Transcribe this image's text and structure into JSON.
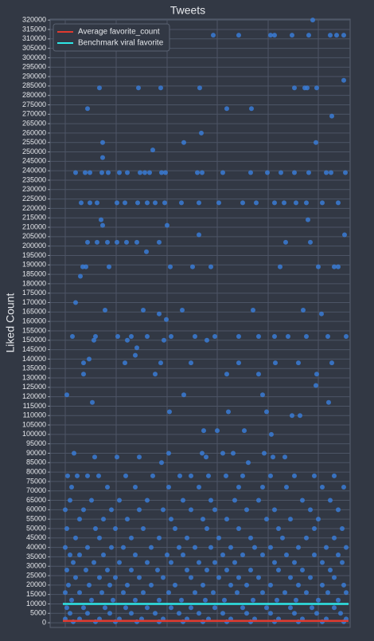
{
  "chart_data": {
    "type": "scatter",
    "title": "Tweets",
    "ylabel": "Liked Count",
    "grid": true,
    "legend": "upper left",
    "xlim": [
      63,
      440
    ],
    "xticks": [
      82,
      146,
      210,
      273,
      337,
      400
    ],
    "ylim": [
      -2500,
      320500
    ],
    "yticks": [
      0,
      5000,
      10000,
      15000,
      20000,
      25000,
      30000,
      35000,
      40000,
      45000,
      50000,
      55000,
      60000,
      65000,
      70000,
      75000,
      80000,
      85000,
      90000,
      95000,
      100000,
      105000,
      110000,
      115000,
      120000,
      125000,
      130000,
      135000,
      140000,
      145000,
      150000,
      155000,
      160000,
      165000,
      170000,
      175000,
      180000,
      185000,
      190000,
      195000,
      200000,
      205000,
      210000,
      215000,
      220000,
      225000,
      230000,
      235000,
      240000,
      245000,
      250000,
      255000,
      260000,
      265000,
      270000,
      275000,
      280000,
      285000,
      290000,
      295000,
      300000,
      305000,
      310000,
      315000,
      320000
    ],
    "lines": [
      {
        "name": "Average favorite_count",
        "color": "#e03a2f",
        "value": 1000
      },
      {
        "name": "Benchmark viral favorite",
        "color": "#2ee6e6",
        "value": 10000
      }
    ],
    "series": [
      {
        "color": "#3a7bd5",
        "x": [
          393,
          268,
          300,
          340,
          345,
          367,
          388,
          415,
          423,
          432,
          432,
          125,
          174,
          202,
          251,
          370,
          383,
          386,
          398,
          110,
          285,
          316,
          417,
          253,
          129,
          231,
          397,
          192,
          129,
          95,
          107,
          113,
          128,
          136,
          150,
          160,
          176,
          182,
          188,
          203,
          208,
          248,
          254,
          280,
          315,
          336,
          353,
          370,
          388,
          410,
          416,
          434,
          102,
          113,
          122,
          147,
          157,
          173,
          185,
          195,
          207,
          228,
          250,
          275,
          305,
          322,
          345,
          357,
          372,
          385,
          405,
          425,
          127,
          387,
          129,
          210,
          250,
          433,
          110,
          122,
          135,
          147,
          159,
          172,
          200,
          359,
          390,
          184,
          104,
          108,
          137,
          214,
          242,
          265,
          352,
          400,
          420,
          425,
          101,
          95,
          132,
          180,
          229,
          318,
          381,
          200,
          404,
          209,
          91,
          120,
          148,
          165,
          185,
          215,
          245,
          270,
          300,
          325,
          345,
          362,
          385,
          412,
          435,
          118,
          160,
          206,
          260,
          172,
          170,
          105,
          157,
          202,
          240,
          300,
          346,
          375,
          417,
          112,
          105,
          195,
          285,
          325,
          398,
          397,
          84,
          231,
          330,
          116,
          413,
          213,
          287,
          335,
          367,
          377,
          256,
          273,
          307,
          341,
          93,
          212,
          254,
          280,
          293,
          332,
          119,
          147,
          175,
          259,
          343,
          358,
          203,
          312,
          85,
          97,
          110,
          124,
          158,
          192,
          226,
          240,
          262,
          284,
          305,
          340,
          370,
          395,
          420,
          90,
          135,
          170,
          212,
          250,
          300,
          330,
          360,
          405,
          432,
          88,
          115,
          150,
          185,
          230,
          265,
          295,
          325,
          380,
          415,
          82,
          105,
          140,
          175,
          205,
          240,
          270,
          310,
          345,
          390,
          425,
          100,
          130,
          160,
          215,
          255,
          285,
          335,
          365,
          400,
          84,
          120,
          145,
          180,
          220,
          260,
          300,
          350,
          395,
          430,
          95,
          125,
          165,
          200,
          235,
          275,
          315,
          355,
          385,
          420,
          82,
          110,
          140,
          155,
          190,
          225,
          245,
          265,
          290,
          320,
          340,
          375,
          410,
          435,
          88,
          100,
          130,
          170,
          210,
          230,
          280,
          305,
          330,
          360,
          395,
          425,
          92,
          118,
          150,
          185,
          215,
          250,
          270,
          295,
          345,
          370,
          405,
          430,
          84,
          108,
          135,
          165,
          198,
          235,
          260,
          285,
          315,
          350,
          380,
          415,
          95,
          125,
          145,
          175,
          205,
          240,
          275,
          300,
          325,
          365,
          390,
          420,
          86,
          112,
          138,
          160,
          190,
          220,
          255,
          290,
          310,
          340,
          375,
          405,
          432,
          82,
          100,
          128,
          155,
          180,
          212,
          245,
          268,
          298,
          330,
          358,
          385,
          412,
          435,
          90,
          115,
          142,
          170,
          200,
          228,
          258,
          282,
          318,
          348,
          372,
          400,
          425,
          84,
          105,
          132,
          158,
          185,
          215,
          240,
          270,
          305,
          335,
          365,
          392,
          420,
          88,
          110,
          138,
          165,
          195,
          225,
          250,
          280,
          310,
          340,
          370,
          398,
          428,
          82,
          100,
          125,
          150,
          178,
          205,
          235,
          262,
          290,
          320,
          350,
          380,
          410,
          435,
          92,
          120,
          145,
          172,
          200,
          230,
          255,
          285,
          315,
          345,
          375,
          405,
          432
        ],
        "values": [
          320000,
          312000,
          312000,
          312000,
          312000,
          312000,
          312000,
          312000,
          312000,
          312000,
          288000,
          284000,
          284000,
          284000,
          284000,
          284000,
          284000,
          284000,
          284000,
          273000,
          273000,
          273000,
          269000,
          260000,
          255000,
          255000,
          255000,
          251000,
          247000,
          239000,
          239000,
          239000,
          239000,
          239000,
          239000,
          239000,
          239000,
          239000,
          239000,
          239000,
          239000,
          239000,
          239000,
          239000,
          239000,
          239000,
          239000,
          239000,
          239000,
          239000,
          239000,
          239000,
          223000,
          223000,
          223000,
          223000,
          223000,
          223000,
          223000,
          223000,
          223000,
          223000,
          223000,
          223000,
          223000,
          223000,
          223000,
          223000,
          223000,
          223000,
          223000,
          223000,
          214000,
          214000,
          211000,
          211000,
          206000,
          206000,
          202000,
          202000,
          202000,
          202000,
          202000,
          202000,
          202000,
          202000,
          202000,
          197000,
          189000,
          189000,
          189000,
          189000,
          189000,
          189000,
          189000,
          189000,
          189000,
          189000,
          184000,
          170000,
          166000,
          166000,
          166000,
          166000,
          166000,
          164000,
          164000,
          161000,
          152000,
          152000,
          152000,
          152000,
          152000,
          152000,
          152000,
          152000,
          152000,
          152000,
          152000,
          152000,
          152000,
          152000,
          152000,
          150000,
          150000,
          150000,
          150000,
          146000,
          142000,
          138000,
          138000,
          138000,
          138000,
          138000,
          138000,
          138000,
          138000,
          140000,
          132000,
          132000,
          132000,
          132000,
          132000,
          126000,
          121000,
          121000,
          121000,
          117000,
          117000,
          112000,
          112000,
          112000,
          110000,
          110000,
          102000,
          102000,
          102000,
          100000,
          90000,
          90000,
          90000,
          90000,
          90000,
          90000,
          88000,
          88000,
          88000,
          88000,
          88000,
          88000,
          85000,
          85000,
          78000,
          78000,
          78000,
          78000,
          78000,
          78000,
          78000,
          78000,
          78000,
          78000,
          78000,
          78000,
          78000,
          78000,
          78000,
          72000,
          72000,
          72000,
          72000,
          72000,
          72000,
          72000,
          72000,
          72000,
          72000,
          65000,
          65000,
          65000,
          65000,
          65000,
          65000,
          65000,
          65000,
          65000,
          65000,
          60000,
          60000,
          60000,
          60000,
          60000,
          60000,
          60000,
          60000,
          60000,
          60000,
          60000,
          55000,
          55000,
          55000,
          55000,
          55000,
          55000,
          55000,
          55000,
          55000,
          50000,
          50000,
          50000,
          50000,
          50000,
          50000,
          50000,
          50000,
          50000,
          50000,
          45000,
          45000,
          45000,
          45000,
          45000,
          45000,
          45000,
          45000,
          45000,
          45000,
          40000,
          40000,
          40000,
          40000,
          40000,
          40000,
          40000,
          40000,
          40000,
          40000,
          40000,
          40000,
          40000,
          40000,
          36000,
          36000,
          36000,
          36000,
          36000,
          36000,
          36000,
          36000,
          36000,
          36000,
          36000,
          36000,
          32000,
          32000,
          32000,
          32000,
          32000,
          32000,
          32000,
          32000,
          32000,
          32000,
          32000,
          32000,
          28000,
          28000,
          28000,
          28000,
          28000,
          28000,
          28000,
          28000,
          28000,
          28000,
          28000,
          28000,
          24000,
          24000,
          24000,
          24000,
          24000,
          24000,
          24000,
          24000,
          24000,
          24000,
          24000,
          24000,
          20000,
          20000,
          20000,
          20000,
          20000,
          20000,
          20000,
          20000,
          20000,
          20000,
          20000,
          20000,
          20000,
          16000,
          16000,
          16000,
          16000,
          16000,
          16000,
          16000,
          16000,
          16000,
          16000,
          16000,
          16000,
          16000,
          16000,
          12000,
          12000,
          12000,
          12000,
          12000,
          12000,
          12000,
          12000,
          12000,
          12000,
          12000,
          12000,
          12000,
          8000,
          8000,
          8000,
          8000,
          8000,
          8000,
          8000,
          8000,
          8000,
          8000,
          8000,
          8000,
          8000,
          5000,
          5000,
          5000,
          5000,
          5000,
          5000,
          5000,
          5000,
          5000,
          5000,
          5000,
          5000,
          5000,
          2000,
          2000,
          2000,
          2000,
          2000,
          2000,
          2000,
          2000,
          2000,
          2000,
          2000,
          2000,
          2000,
          2000,
          500,
          500,
          500,
          500,
          500,
          500,
          500,
          500,
          500,
          500,
          500,
          500,
          500
        ]
      }
    ]
  }
}
